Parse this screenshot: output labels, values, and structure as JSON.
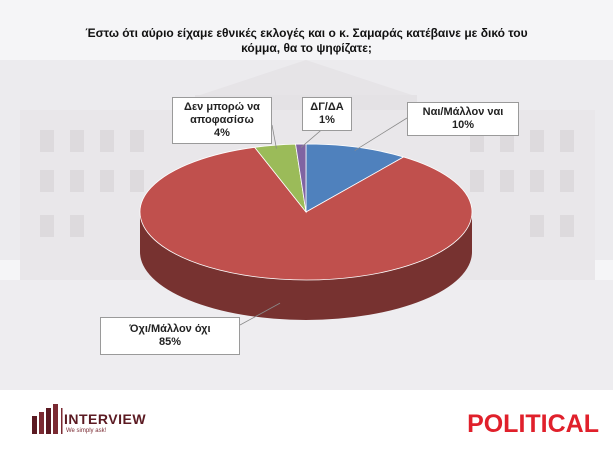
{
  "title": {
    "line1": "Έστω ότι αύριο είχαμε εθνικές εκλογές και ο κ. Σαμαράς κατέβαινε με δικό του",
    "line2": "κόμμα, θα το ψηφίζατε;"
  },
  "chart_data": {
    "type": "pie",
    "title": "Έστω ότι αύριο είχαμε εθνικές εκλογές και ο κ. Σαμαράς κατέβαινε με δικό του κόμμα, θα το ψηφίζατε;",
    "slices": [
      {
        "name": "Ναι/Μάλλον ναι",
        "value": 10,
        "value_label": "10%",
        "color": "#4f81bd"
      },
      {
        "name": "Όχι/Μάλλον όχι",
        "value": 85,
        "value_label": "85%",
        "color": "#c0504d"
      },
      {
        "name": "Δεν μπορώ να αποφασίσω",
        "name_lines": [
          "Δεν μπορώ να",
          "αποφασίσω"
        ],
        "value": 4,
        "value_label": "4%",
        "color": "#9bbb59"
      },
      {
        "name": "ΔΓ/ΔΑ",
        "value": 1,
        "value_label": "1%",
        "color": "#8064a2"
      }
    ]
  },
  "logos": {
    "left_name": "INTERVIEW",
    "left_tagline": "We simply ask!",
    "right_name": "POLITICAL"
  },
  "colors": {
    "political_red": "#e0202b",
    "interview_maroon": "#5b1a22"
  }
}
